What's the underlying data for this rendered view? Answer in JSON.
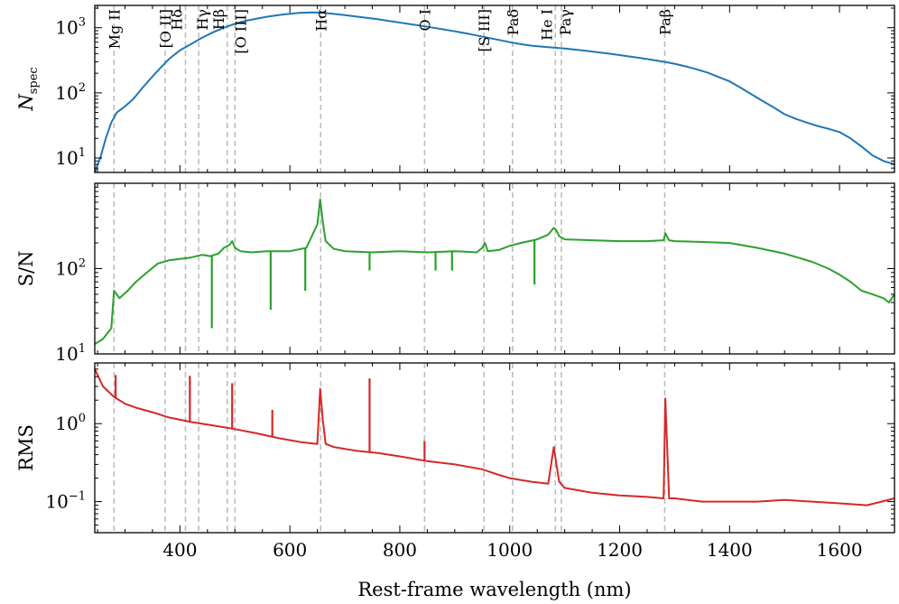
{
  "chart_data": [
    {
      "type": "line",
      "panel": "top",
      "ylabel": "N",
      "ylabel_sub": "spec",
      "yscale": "log",
      "ylim": [
        6,
        2200
      ],
      "xlim": [
        245,
        1700
      ],
      "yticks": [
        {
          "value": 10,
          "base": "10",
          "exp": "1"
        },
        {
          "value": 100,
          "base": "10",
          "exp": "2"
        },
        {
          "value": 1000,
          "base": "10",
          "exp": "3"
        }
      ],
      "color": "#1f77b4",
      "series": [
        {
          "name": "N_spec",
          "x": [
            245,
            255,
            265,
            275,
            285,
            300,
            315,
            330,
            345,
            360,
            380,
            400,
            420,
            440,
            460,
            480,
            500,
            520,
            540,
            560,
            580,
            600,
            620,
            640,
            660,
            680,
            700,
            720,
            740,
            760,
            780,
            800,
            820,
            840,
            860,
            880,
            900,
            920,
            940,
            960,
            980,
            1000,
            1020,
            1040,
            1060,
            1080,
            1100,
            1120,
            1140,
            1160,
            1180,
            1200,
            1220,
            1240,
            1260,
            1280,
            1300,
            1320,
            1340,
            1360,
            1380,
            1400,
            1420,
            1440,
            1460,
            1480,
            1500,
            1520,
            1540,
            1560,
            1580,
            1600,
            1620,
            1640,
            1660,
            1680,
            1700
          ],
          "y": [
            6,
            10,
            20,
            35,
            50,
            62,
            80,
            115,
            160,
            220,
            330,
            450,
            560,
            700,
            850,
            1000,
            1150,
            1280,
            1380,
            1480,
            1570,
            1640,
            1700,
            1720,
            1700,
            1630,
            1560,
            1490,
            1420,
            1350,
            1270,
            1200,
            1130,
            1070,
            1000,
            940,
            880,
            820,
            760,
            700,
            650,
            600,
            560,
            530,
            510,
            495,
            480,
            460,
            440,
            420,
            400,
            380,
            360,
            340,
            320,
            300,
            280,
            255,
            230,
            205,
            175,
            150,
            120,
            95,
            75,
            60,
            47,
            40,
            35,
            31,
            28,
            25,
            20,
            15,
            11,
            9,
            8
          ]
        }
      ]
    },
    {
      "type": "line",
      "panel": "middle",
      "ylabel": "S/N",
      "yscale": "log",
      "ylim": [
        10,
        1000
      ],
      "xlim": [
        245,
        1700
      ],
      "yticks": [
        {
          "value": 10,
          "base": "10",
          "exp": "1"
        },
        {
          "value": 100,
          "base": "10",
          "exp": "2"
        }
      ],
      "color": "#2ca02c",
      "series": [
        {
          "name": "S/N",
          "x": [
            245,
            260,
            275,
            280,
            290,
            305,
            320,
            340,
            360,
            380,
            400,
            420,
            440,
            455,
            470,
            480,
            490,
            495,
            500,
            510,
            530,
            560,
            600,
            630,
            650,
            655,
            660,
            665,
            680,
            700,
            750,
            800,
            850,
            900,
            940,
            950,
            955,
            960,
            980,
            1000,
            1020,
            1050,
            1070,
            1080,
            1085,
            1090,
            1100,
            1150,
            1200,
            1250,
            1280,
            1283,
            1290,
            1300,
            1350,
            1400,
            1450,
            1500,
            1550,
            1580,
            1600,
            1620,
            1640,
            1660,
            1680,
            1690,
            1700
          ],
          "y": [
            13,
            15,
            20,
            55,
            45,
            55,
            70,
            90,
            115,
            125,
            130,
            135,
            145,
            140,
            150,
            175,
            190,
            210,
            175,
            160,
            155,
            160,
            160,
            175,
            330,
            650,
            350,
            210,
            170,
            160,
            155,
            160,
            155,
            160,
            155,
            175,
            200,
            160,
            165,
            185,
            200,
            220,
            250,
            300,
            280,
            240,
            220,
            215,
            210,
            210,
            215,
            260,
            215,
            210,
            205,
            200,
            175,
            150,
            120,
            100,
            85,
            70,
            55,
            50,
            45,
            40,
            50
          ]
        }
      ],
      "absorption_dips": [
        {
          "x": 458,
          "y": 20
        },
        {
          "x": 565,
          "y": 33
        },
        {
          "x": 628,
          "y": 55
        },
        {
          "x": 745,
          "y": 95
        },
        {
          "x": 865,
          "y": 95
        },
        {
          "x": 895,
          "y": 95
        },
        {
          "x": 1045,
          "y": 65
        }
      ]
    },
    {
      "type": "line",
      "panel": "bottom",
      "ylabel": "RMS",
      "yscale": "log",
      "ylim": [
        0.04,
        6
      ],
      "xlim": [
        245,
        1700
      ],
      "xlabel": "Rest-frame wavelength (nm)",
      "xticks": [
        400,
        600,
        800,
        1000,
        1200,
        1400,
        1600
      ],
      "yticks": [
        {
          "value": 0.1,
          "base": "10",
          "exp": "−1"
        },
        {
          "value": 1,
          "base": "10",
          "exp": "0"
        }
      ],
      "color": "#d62728",
      "series": [
        {
          "name": "RMS",
          "x": [
            245,
            260,
            280,
            300,
            320,
            350,
            380,
            420,
            460,
            500,
            540,
            580,
            620,
            650,
            655,
            660,
            665,
            680,
            720,
            760,
            800,
            850,
            900,
            950,
            980,
            1000,
            1040,
            1070,
            1080,
            1085,
            1090,
            1100,
            1150,
            1200,
            1250,
            1280,
            1283,
            1290,
            1300,
            1350,
            1400,
            1450,
            1500,
            1550,
            1600,
            1650,
            1700
          ],
          "y": [
            5,
            3,
            2.2,
            1.8,
            1.6,
            1.4,
            1.2,
            1.05,
            0.95,
            0.85,
            0.75,
            0.65,
            0.58,
            0.55,
            2.8,
            1.1,
            0.55,
            0.5,
            0.45,
            0.42,
            0.38,
            0.33,
            0.3,
            0.26,
            0.22,
            0.2,
            0.18,
            0.17,
            0.5,
            0.3,
            0.18,
            0.15,
            0.13,
            0.12,
            0.115,
            0.11,
            2.1,
            0.11,
            0.11,
            0.1,
            0.1,
            0.1,
            0.105,
            0.1,
            0.095,
            0.09,
            0.11
          ]
        }
      ],
      "emission_spikes": [
        {
          "x": 283,
          "y": 4.2
        },
        {
          "x": 418,
          "y": 4.1
        },
        {
          "x": 495,
          "y": 3.3
        },
        {
          "x": 568,
          "y": 1.5
        },
        {
          "x": 745,
          "y": 3.8
        },
        {
          "x": 845,
          "y": 0.6
        }
      ]
    }
  ],
  "spectral_lines": [
    {
      "label": "Mg II",
      "wl": 280
    },
    {
      "label": "[O II]",
      "wl": 373
    },
    {
      "label": "Hδ",
      "wl": 410
    },
    {
      "label": "Hγ",
      "wl": 434
    },
    {
      "label": "Hβ",
      "wl": 486
    },
    {
      "label": "[O III]",
      "wl": 500
    },
    {
      "label": "Hα",
      "wl": 656
    },
    {
      "label": "O I",
      "wl": 845
    },
    {
      "label": "[S III]",
      "wl": 953
    },
    {
      "label": "Paδ",
      "wl": 1005
    },
    {
      "label": "He I",
      "wl": 1083
    },
    {
      "label": "Paγ",
      "wl": 1094
    },
    {
      "label": "Paβ",
      "wl": 1282
    }
  ]
}
